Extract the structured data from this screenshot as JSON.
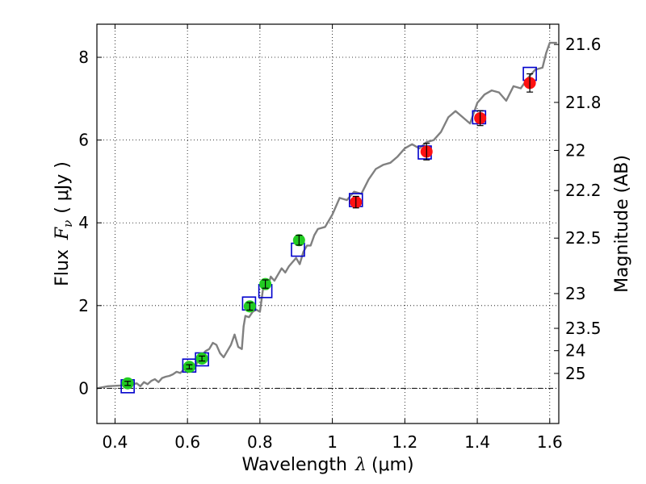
{
  "chart_data": {
    "type": "scatter",
    "xlabel": "Wavelength",
    "xlabel_symbol": "λ",
    "xlabel_unit": "(μm)",
    "ylabel": "Flux",
    "ylabel_symbol": "F",
    "ylabel_subscript": "ν",
    "ylabel_unit": "( μJy )",
    "y2label": "Magnitude (AB)",
    "xlim": [
      0.35,
      1.625
    ],
    "ylim": [
      -0.85,
      8.8
    ],
    "grid": true,
    "xticks": [
      0.4,
      0.6,
      0.8,
      1.0,
      1.2,
      1.4,
      1.6
    ],
    "xtick_labels": [
      "0.4",
      "0.6",
      "0.8",
      "1",
      "1.2",
      "1.4",
      "1.6"
    ],
    "yticks": [
      0,
      2,
      4,
      6,
      8
    ],
    "ytick_labels": [
      "0",
      "2",
      "4",
      "6",
      "8"
    ],
    "mag_ticks": [
      {
        "label": "21.6",
        "flux": 8.31
      },
      {
        "label": "21.8",
        "flux": 6.91
      },
      {
        "label": "22",
        "flux": 5.75
      },
      {
        "label": "22.2",
        "flux": 4.78
      },
      {
        "label": "22.5",
        "flux": 3.63
      },
      {
        "label": "23",
        "flux": 2.29
      },
      {
        "label": "23.5",
        "flux": 1.45
      },
      {
        "label": "24",
        "flux": 0.91
      },
      {
        "label": "25",
        "flux": 0.36
      }
    ],
    "model_spectrum": {
      "name": "model",
      "color": "#808080",
      "x": [
        0.35,
        0.38,
        0.4,
        0.42,
        0.44,
        0.46,
        0.47,
        0.48,
        0.49,
        0.5,
        0.51,
        0.52,
        0.53,
        0.54,
        0.55,
        0.56,
        0.57,
        0.58,
        0.59,
        0.6,
        0.61,
        0.62,
        0.63,
        0.64,
        0.65,
        0.66,
        0.67,
        0.68,
        0.69,
        0.7,
        0.71,
        0.72,
        0.73,
        0.74,
        0.75,
        0.755,
        0.76,
        0.77,
        0.78,
        0.79,
        0.8,
        0.81,
        0.82,
        0.83,
        0.84,
        0.85,
        0.86,
        0.87,
        0.88,
        0.89,
        0.9,
        0.91,
        0.92,
        0.93,
        0.94,
        0.95,
        0.96,
        0.98,
        1.0,
        1.02,
        1.04,
        1.06,
        1.08,
        1.1,
        1.12,
        1.14,
        1.16,
        1.18,
        1.2,
        1.22,
        1.24,
        1.26,
        1.28,
        1.3,
        1.32,
        1.34,
        1.36,
        1.38,
        1.4,
        1.42,
        1.44,
        1.46,
        1.48,
        1.5,
        1.52,
        1.54,
        1.56,
        1.58,
        1.59,
        1.6,
        1.62
      ],
      "y": [
        0.0,
        0.05,
        0.06,
        0.07,
        0.08,
        0.12,
        0.05,
        0.15,
        0.1,
        0.18,
        0.22,
        0.15,
        0.25,
        0.28,
        0.3,
        0.34,
        0.4,
        0.37,
        0.45,
        0.47,
        0.52,
        0.48,
        0.7,
        0.8,
        0.9,
        0.95,
        1.1,
        1.05,
        0.85,
        0.75,
        0.9,
        1.05,
        1.3,
        1.0,
        0.95,
        1.5,
        1.75,
        1.72,
        1.85,
        1.9,
        1.85,
        2.5,
        2.4,
        2.7,
        2.6,
        2.75,
        2.9,
        2.8,
        2.95,
        3.05,
        3.15,
        3.0,
        3.3,
        3.45,
        3.45,
        3.7,
        3.85,
        3.9,
        4.2,
        4.6,
        4.55,
        4.75,
        4.7,
        5.05,
        5.3,
        5.4,
        5.45,
        5.6,
        5.8,
        5.9,
        5.8,
        5.95,
        6.0,
        6.2,
        6.55,
        6.7,
        6.55,
        6.4,
        6.9,
        7.1,
        7.2,
        7.15,
        6.95,
        7.3,
        7.25,
        7.5,
        7.7,
        7.75,
        8.1,
        8.35,
        8.35
      ]
    },
    "series": [
      {
        "name": "model_band_flux",
        "marker": "square",
        "color": "#0000cc",
        "points": [
          {
            "x": 0.435,
            "y": 0.05
          },
          {
            "x": 0.605,
            "y": 0.55
          },
          {
            "x": 0.64,
            "y": 0.7
          },
          {
            "x": 0.77,
            "y": 2.05
          },
          {
            "x": 0.815,
            "y": 2.35
          },
          {
            "x": 0.905,
            "y": 3.35
          },
          {
            "x": 1.065,
            "y": 4.55
          },
          {
            "x": 1.255,
            "y": 5.7
          },
          {
            "x": 1.405,
            "y": 6.55
          },
          {
            "x": 1.545,
            "y": 7.6
          }
        ]
      },
      {
        "name": "optical_photometry",
        "marker": "circle",
        "color": "#22cc22",
        "points": [
          {
            "x": 0.435,
            "y": 0.12,
            "err": 0.05
          },
          {
            "x": 0.605,
            "y": 0.52,
            "err": 0.05
          },
          {
            "x": 0.64,
            "y": 0.72,
            "err": 0.06
          },
          {
            "x": 0.772,
            "y": 1.98,
            "err": 0.09
          },
          {
            "x": 0.815,
            "y": 2.52,
            "err": 0.1
          },
          {
            "x": 0.908,
            "y": 3.58,
            "err": 0.12
          }
        ]
      },
      {
        "name": "nir_photometry",
        "marker": "circle",
        "color": "#ff1111",
        "points": [
          {
            "x": 1.065,
            "y": 4.5,
            "err": 0.14
          },
          {
            "x": 1.26,
            "y": 5.72,
            "err": 0.2
          },
          {
            "x": 1.408,
            "y": 6.53,
            "err": 0.18
          },
          {
            "x": 1.545,
            "y": 7.38,
            "err": 0.22
          }
        ]
      }
    ]
  }
}
